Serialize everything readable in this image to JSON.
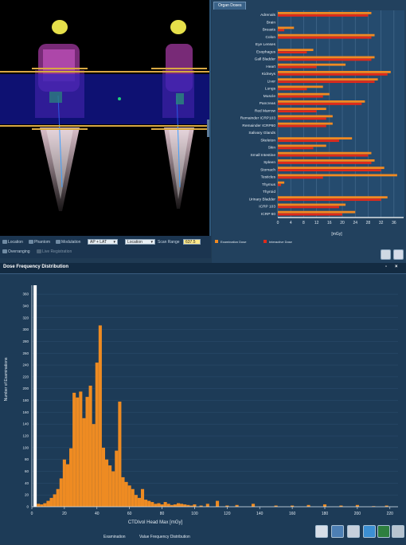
{
  "viewer": {
    "toolbar": {
      "location_label": "Location",
      "phantom_label": "Phantom",
      "modulation_label": "Modulation",
      "view_select": "AP + LAT",
      "location_select": "Location",
      "scan_range_label": "Scan Range",
      "scan_range_value": "637.5",
      "overranging_label": "Overranging",
      "live_registration_label": "Live Registration"
    }
  },
  "organ_panel": {
    "tab_label": "Organ Doses",
    "legend": {
      "exam_label": "Examination Dose",
      "interactive_label": "Interactive Dose",
      "exam_color": "#f08a22",
      "interactive_color": "#e02a1a"
    },
    "chart_data": {
      "type": "bar",
      "orientation": "horizontal",
      "categories": [
        "Adrenals",
        "Brain",
        "Breasts",
        "Colon",
        "Eye Lenses",
        "Esophagus",
        "Gall Bladder",
        "Heart",
        "Kidneys",
        "Liver",
        "Lungs",
        "Muscle",
        "Pancreas",
        "Red Marrow",
        "Remainder ICRP103",
        "Remainder ICRP60",
        "Salivary Glands",
        "Skeleton",
        "Skin",
        "Small Intestine",
        "Spleen",
        "Stomach",
        "Testicles",
        "Thymus",
        "Thyroid",
        "Urinary Bladder",
        "ICRP 103",
        "ICRP 60"
      ],
      "series": [
        {
          "name": "Examination Dose",
          "values": [
            29,
            0,
            5,
            30,
            0,
            11,
            30,
            21,
            35,
            31,
            14,
            16,
            27,
            15,
            17,
            17,
            0,
            23,
            15,
            29,
            30,
            33,
            37,
            2,
            0,
            34,
            21,
            24
          ]
        },
        {
          "name": "Interactive Dose",
          "values": [
            28,
            0,
            2,
            29,
            0,
            9,
            29,
            12,
            34,
            30,
            9,
            14,
            26,
            12,
            15,
            15,
            0,
            19,
            11,
            28,
            29,
            32,
            14,
            1,
            0,
            32,
            19,
            20
          ]
        }
      ],
      "xlabel": "[mGy]",
      "xticks": [
        "0",
        "4",
        "8",
        "12",
        "16",
        "20",
        "24",
        "28",
        "32",
        "36"
      ],
      "xlim": [
        0,
        39
      ]
    }
  },
  "dose_freq": {
    "title": "Dose Frequency Distribution",
    "win_controls": [
      "▫",
      "×"
    ],
    "footer_left": "Examination",
    "footer_right": "Value Frequency Distribution",
    "chart_data": {
      "type": "bar",
      "x": [
        2,
        4,
        6,
        8,
        10,
        12,
        14,
        16,
        18,
        20,
        22,
        24,
        26,
        28,
        30,
        32,
        34,
        36,
        38,
        40,
        42,
        44,
        46,
        48,
        50,
        52,
        54,
        56,
        58,
        60,
        62,
        64,
        66,
        68,
        70,
        72,
        74,
        76,
        78,
        80,
        82,
        84,
        86,
        88,
        90,
        92,
        94,
        96,
        98,
        100,
        104,
        108,
        114,
        120,
        126,
        136,
        150,
        160,
        170,
        180,
        190,
        200,
        210,
        218
      ],
      "values": [
        375,
        5,
        4,
        6,
        10,
        15,
        21,
        30,
        48,
        80,
        72,
        99,
        193,
        185,
        195,
        150,
        186,
        205,
        140,
        244,
        307,
        100,
        80,
        70,
        60,
        95,
        178,
        50,
        42,
        36,
        30,
        20,
        15,
        30,
        12,
        10,
        8,
        5,
        6,
        4,
        8,
        5,
        3,
        4,
        6,
        5,
        4,
        3,
        2,
        4,
        2,
        5,
        10,
        2,
        3,
        5,
        2,
        2,
        3,
        4,
        2,
        3,
        1,
        2
      ],
      "xlabel": "CTDIvol Head Max     [mGy]",
      "ylabel": "Number of Examinations",
      "xticks": [
        0,
        20,
        40,
        60,
        80,
        100,
        120,
        140,
        160,
        180,
        200,
        220
      ],
      "yticks": [
        0,
        20,
        40,
        60,
        80,
        100,
        120,
        140,
        160,
        180,
        200,
        220,
        240,
        260,
        280,
        300,
        320,
        340,
        360
      ],
      "xlim": [
        0,
        225
      ],
      "ylim": [
        0,
        375
      ]
    }
  }
}
